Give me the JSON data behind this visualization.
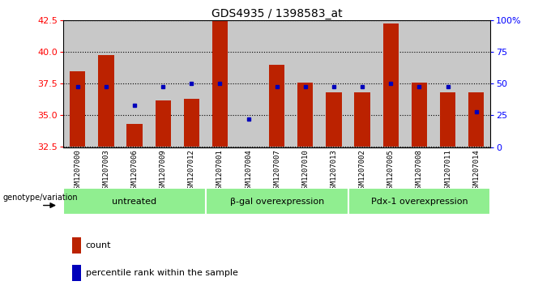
{
  "title": "GDS4935 / 1398583_at",
  "samples": [
    "GSM1207000",
    "GSM1207003",
    "GSM1207006",
    "GSM1207009",
    "GSM1207012",
    "GSM1207001",
    "GSM1207004",
    "GSM1207007",
    "GSM1207010",
    "GSM1207013",
    "GSM1207002",
    "GSM1207005",
    "GSM1207008",
    "GSM1207011",
    "GSM1207014"
  ],
  "counts": [
    38.5,
    39.8,
    34.3,
    36.2,
    36.3,
    42.5,
    32.5,
    39.0,
    37.6,
    36.8,
    36.8,
    42.3,
    37.6,
    36.8,
    36.8
  ],
  "percentile_ranks": [
    48,
    48,
    33,
    48,
    50,
    50,
    22,
    48,
    48,
    48,
    48,
    50,
    48,
    48,
    28
  ],
  "groups": [
    {
      "label": "untreated",
      "start": 0,
      "end": 5
    },
    {
      "label": "β-gal overexpression",
      "start": 5,
      "end": 10
    },
    {
      "label": "Pdx-1 overexpression",
      "start": 10,
      "end": 15
    }
  ],
  "ylim_left": [
    32.5,
    42.5
  ],
  "ylim_right": [
    0,
    100
  ],
  "yticks_left": [
    32.5,
    35.0,
    37.5,
    40.0,
    42.5
  ],
  "yticks_right": [
    0,
    25,
    50,
    75,
    100
  ],
  "ytick_labels_right": [
    "0",
    "25",
    "50",
    "75",
    "100%"
  ],
  "bar_color": "#bb2200",
  "dot_color": "#0000bb",
  "bar_width": 0.55,
  "bg_plot": "#c8c8c8",
  "bg_group": "#90ee90",
  "bg_xtick": "#c0c0c0",
  "genotype_label": "genotype/variation",
  "legend_count": "count",
  "legend_pct": "percentile rank within the sample"
}
